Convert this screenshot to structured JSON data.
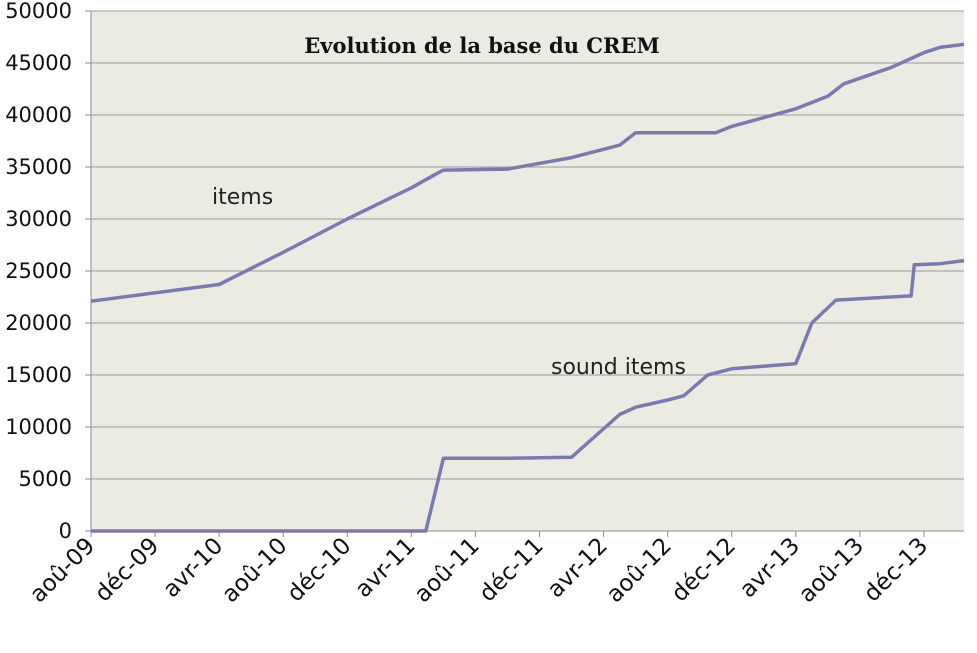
{
  "chart_data": {
    "type": "line",
    "title": "Evolution de la base du CREM",
    "xlabel": "",
    "ylabel": "",
    "ylim": [
      0,
      50000
    ],
    "y_ticks": [
      "0",
      "5000",
      "10000",
      "15000",
      "20000",
      "25000",
      "30000",
      "35000",
      "40000",
      "45000",
      "50000"
    ],
    "x_ticks": [
      "aoû-09",
      "déc-09",
      "avr-10",
      "aoû-10",
      "déc-10",
      "avr-11",
      "aoû-11",
      "déc-11",
      "avr-12",
      "aoû-12",
      "déc-12",
      "avr-13",
      "aoû-13",
      "déc-13"
    ],
    "grid": true,
    "legend": "none",
    "series": [
      {
        "name": "items",
        "points": [
          [
            0,
            22100
          ],
          [
            8,
            23700
          ],
          [
            12,
            26800
          ],
          [
            16,
            30000
          ],
          [
            20,
            33000
          ],
          [
            21.5,
            34300
          ],
          [
            22,
            34700
          ],
          [
            26,
            34800
          ],
          [
            30,
            35900
          ],
          [
            33,
            37100
          ],
          [
            34,
            38300
          ],
          [
            39,
            38300
          ],
          [
            40,
            38900
          ],
          [
            44,
            40600
          ],
          [
            46,
            41800
          ],
          [
            47,
            43000
          ],
          [
            50,
            44600
          ],
          [
            52,
            46000
          ],
          [
            53,
            46500
          ],
          [
            54.5,
            46800
          ]
        ]
      },
      {
        "name": "sound items",
        "points": [
          [
            0,
            0
          ],
          [
            20.9,
            0
          ],
          [
            22,
            7000
          ],
          [
            24,
            7000
          ],
          [
            26,
            7000
          ],
          [
            30,
            7100
          ],
          [
            33,
            11200
          ],
          [
            34,
            11900
          ],
          [
            36,
            12600
          ],
          [
            37,
            13000
          ],
          [
            38.5,
            15000
          ],
          [
            40,
            15600
          ],
          [
            44,
            16100
          ],
          [
            45,
            20000
          ],
          [
            46.5,
            22200
          ],
          [
            51,
            22600
          ],
          [
            51.2,
            22600
          ],
          [
            51.4,
            25600
          ],
          [
            53,
            25700
          ],
          [
            54.5,
            26000
          ]
        ]
      }
    ],
    "series_labels": [
      "items",
      "sound items"
    ]
  }
}
